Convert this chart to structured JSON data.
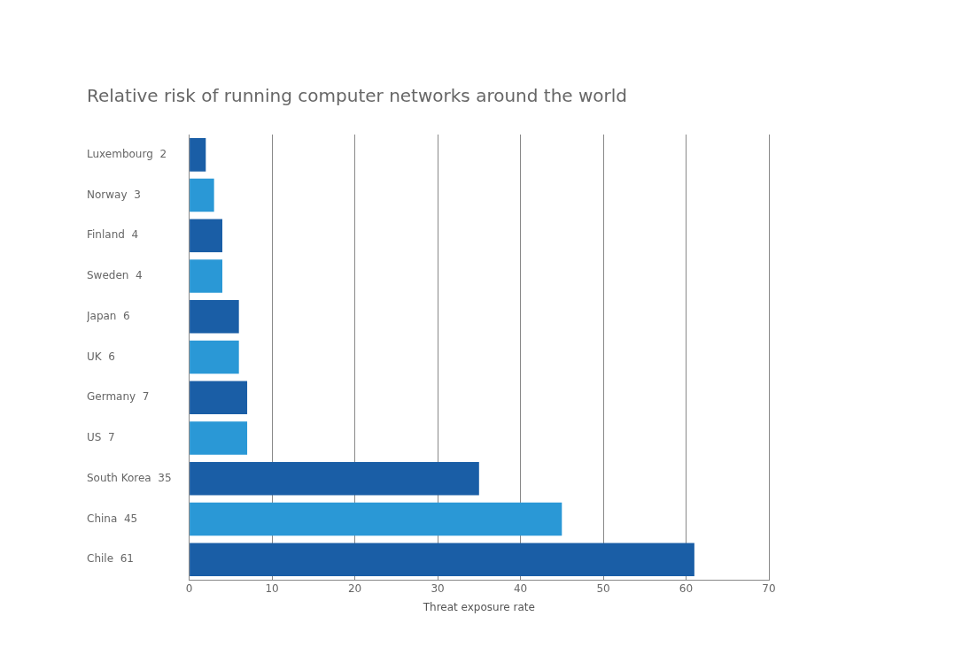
{
  "chart_data": {
    "type": "bar",
    "orientation": "horizontal",
    "title": "Relative risk of running computer networks around the world",
    "xlabel": "Threat exposure rate",
    "categories": [
      "Luxembourg  2",
      "Norway  3",
      "Finland  4",
      "Sweden  4",
      "Japan  6",
      "UK  6",
      "Germany  7",
      "US  7",
      "South Korea  35",
      "China  45",
      "Chile  61"
    ],
    "values": [
      2,
      3,
      4,
      4,
      6,
      6,
      7,
      7,
      35,
      45,
      61
    ],
    "colors": [
      "#1a5ea6",
      "#2a98d6",
      "#1a5ea6",
      "#2a98d6",
      "#1a5ea6",
      "#2a98d6",
      "#1a5ea6",
      "#2a98d6",
      "#1a5ea6",
      "#2a98d6",
      "#1a5ea6"
    ],
    "xlim": [
      0,
      70
    ],
    "xticks": [
      0,
      10,
      20,
      30,
      40,
      50,
      60,
      70
    ],
    "grid": "x",
    "legend": false
  }
}
